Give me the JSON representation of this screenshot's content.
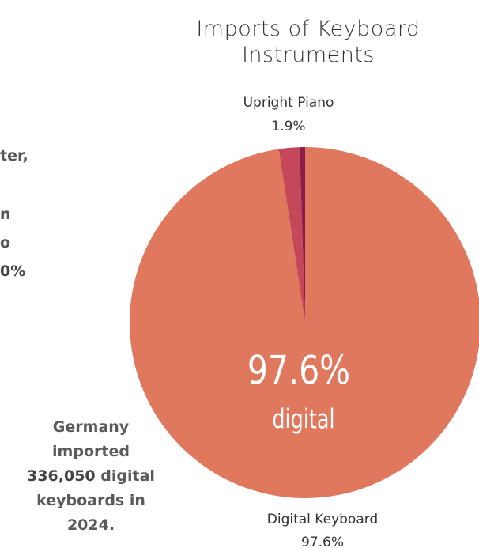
{
  "chart_data": {
    "type": "pie",
    "title": "Imports of Keyboard Instruments",
    "categories": [
      "Digital Keyboard",
      "Upright Piano",
      null
    ],
    "values": [
      97.6,
      1.9,
      0.5
    ],
    "value_labels": [
      "97.6%",
      "1.9%",
      null
    ],
    "colors": [
      "#e0785e",
      "#c4485a",
      "#8c1d4e"
    ],
    "annotations": {
      "big": "97.6%",
      "small": "digital"
    }
  },
  "side_text": [
    "ter,",
    "n",
    "o",
    "0%"
  ],
  "note": [
    [
      {
        "text": "Germany"
      }
    ],
    [
      {
        "text": "imported"
      }
    ],
    [
      {
        "text": "336,050",
        "bold": true
      },
      {
        "text": " digital"
      }
    ],
    [
      {
        "text": "keyboards in"
      }
    ],
    [
      {
        "text": "2024."
      }
    ]
  ]
}
